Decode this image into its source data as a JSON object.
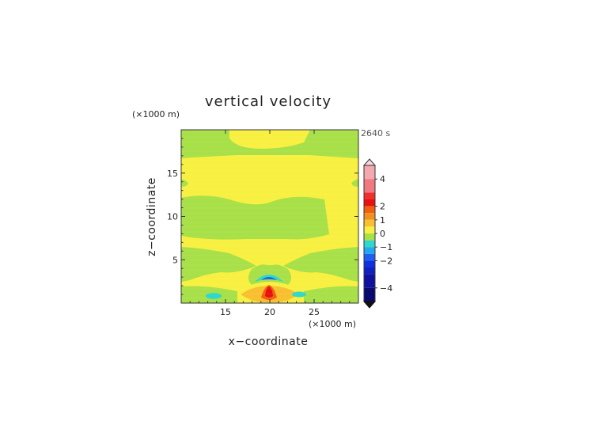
{
  "chart_data": {
    "type": "heatmap",
    "title": "vertical velocity",
    "xlabel": "x−coordinate",
    "ylabel": "z−coordinate",
    "x_unit": "(×1000 m)",
    "y_unit": "(×1000 m)",
    "time_label": "2640 s",
    "xlim": [
      10,
      30
    ],
    "ylim": [
      0,
      20
    ],
    "x_ticks": [
      15,
      20,
      25
    ],
    "y_ticks": [
      5,
      10,
      15
    ],
    "colorbar": {
      "vmin": -5,
      "vmax": 5,
      "tick_values": [
        4,
        2,
        1,
        0,
        -1,
        -2,
        -4
      ],
      "tick_labels": [
        "4",
        "2",
        "1",
        "0",
        "−1",
        "−2",
        "−4"
      ],
      "extend": "both",
      "bands": [
        {
          "lo": 4.0,
          "hi": 5.0,
          "color": "#f4a8b0"
        },
        {
          "lo": 3.0,
          "hi": 4.0,
          "color": "#f07880"
        },
        {
          "lo": 2.5,
          "hi": 3.0,
          "color": "#f03030"
        },
        {
          "lo": 2.0,
          "hi": 2.5,
          "color": "#e81010"
        },
        {
          "lo": 1.5,
          "hi": 2.0,
          "color": "#f06010"
        },
        {
          "lo": 1.0,
          "hi": 1.5,
          "color": "#f09020"
        },
        {
          "lo": 0.5,
          "hi": 1.0,
          "color": "#f8c030"
        },
        {
          "lo": 0.0,
          "hi": 0.5,
          "color": "#f8f040"
        },
        {
          "lo": -0.5,
          "hi": 0.0,
          "color": "#a8e048"
        },
        {
          "lo": -1.0,
          "hi": -0.5,
          "color": "#30d8c8"
        },
        {
          "lo": -1.5,
          "hi": -1.0,
          "color": "#20a8f0"
        },
        {
          "lo": -2.0,
          "hi": -1.5,
          "color": "#2060f0"
        },
        {
          "lo": -2.5,
          "hi": -2.0,
          "color": "#1030e0"
        },
        {
          "lo": -3.0,
          "hi": -2.5,
          "color": "#1020c0"
        },
        {
          "lo": -4.0,
          "hi": -3.0,
          "color": "#1010a0"
        },
        {
          "lo": -5.0,
          "hi": -4.0,
          "color": "#080870"
        }
      ]
    },
    "field": {
      "background_value": 0.15,
      "colors": {
        "near_zero_negative": "#a8e048",
        "weak_positive": "#f8f040",
        "moderate_positive": "#f8c030",
        "strong_positive": "#f06010",
        "core_positive": "#e81010",
        "weak_negative": "#30d8c8",
        "strong_negative": "#2060f0"
      }
    }
  }
}
